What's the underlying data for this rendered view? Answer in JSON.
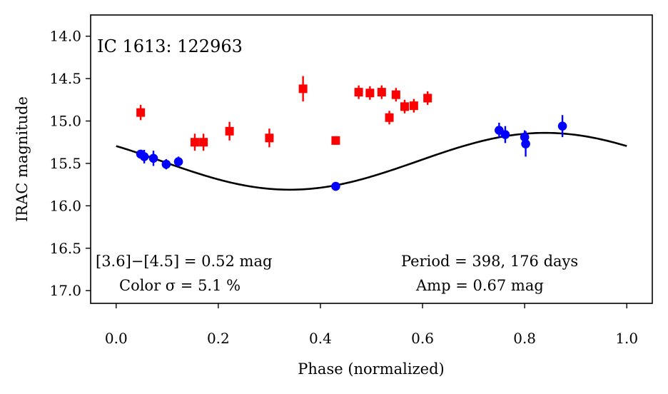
{
  "chart_data": {
    "type": "scatter",
    "title": "IC 1613:  122963",
    "xlabel": "Phase (normalized)",
    "ylabel": "IRAC magnitude",
    "xlim": [
      -0.05,
      1.05
    ],
    "ylim": [
      17.15,
      13.75
    ],
    "y_inverted": true,
    "grid": false,
    "x_ticks": [
      0.0,
      0.2,
      0.4,
      0.6,
      0.8,
      1.0
    ],
    "x_tick_labels": [
      "0.0",
      "0.2",
      "0.4",
      "0.6",
      "0.8",
      "1.0"
    ],
    "y_ticks": [
      14.0,
      14.5,
      15.0,
      15.5,
      16.0,
      16.5,
      17.0
    ],
    "y_tick_labels": [
      "14.0",
      "14.5",
      "15.0",
      "15.5",
      "16.0",
      "16.5",
      "17.0"
    ],
    "annotations": {
      "color_diff": "[3.6]−[4.5] = 0.52 mag",
      "color_sigma": "Color σ = 5.1 %",
      "period": "Period = 398, 176 days",
      "amp": "Amp = 0.67 mag"
    },
    "series": [
      {
        "color": "#ff0000",
        "marker": "square",
        "points": [
          {
            "x": 0.048,
            "y": 14.9,
            "err": 0.09
          },
          {
            "x": 0.154,
            "y": 15.25,
            "err": 0.1
          },
          {
            "x": 0.171,
            "y": 15.25,
            "err": 0.1
          },
          {
            "x": 0.222,
            "y": 15.12,
            "err": 0.11
          },
          {
            "x": 0.3,
            "y": 15.2,
            "err": 0.11
          },
          {
            "x": 0.366,
            "y": 14.62,
            "err": 0.15
          },
          {
            "x": 0.43,
            "y": 15.23,
            "err": 0.05
          },
          {
            "x": 0.475,
            "y": 14.66,
            "err": 0.08
          },
          {
            "x": 0.497,
            "y": 14.67,
            "err": 0.08
          },
          {
            "x": 0.52,
            "y": 14.66,
            "err": 0.08
          },
          {
            "x": 0.535,
            "y": 14.96,
            "err": 0.08
          },
          {
            "x": 0.548,
            "y": 14.69,
            "err": 0.08
          },
          {
            "x": 0.565,
            "y": 14.83,
            "err": 0.08
          },
          {
            "x": 0.583,
            "y": 14.82,
            "err": 0.08
          },
          {
            "x": 0.61,
            "y": 14.73,
            "err": 0.08
          }
        ]
      },
      {
        "color": "#0000ff",
        "marker": "circle",
        "points": [
          {
            "x": 0.048,
            "y": 15.39,
            "err": 0.04
          },
          {
            "x": 0.055,
            "y": 15.42,
            "err": 0.08
          },
          {
            "x": 0.073,
            "y": 15.44,
            "err": 0.09
          },
          {
            "x": 0.098,
            "y": 15.51,
            "err": 0.06
          },
          {
            "x": 0.122,
            "y": 15.48,
            "err": 0.06
          },
          {
            "x": 0.43,
            "y": 15.77,
            "err": 0.04
          },
          {
            "x": 0.75,
            "y": 15.11,
            "err": 0.09
          },
          {
            "x": 0.762,
            "y": 15.16,
            "err": 0.1
          },
          {
            "x": 0.8,
            "y": 15.19,
            "err": 0.08
          },
          {
            "x": 0.802,
            "y": 15.27,
            "err": 0.15
          },
          {
            "x": 0.874,
            "y": 15.06,
            "err": 0.13
          }
        ]
      }
    ],
    "fit_curve": {
      "color": "#000000",
      "mean": 15.475,
      "amplitude": 0.335,
      "phase_of_min": 0.34
    },
    "frame_color": "#000000"
  }
}
